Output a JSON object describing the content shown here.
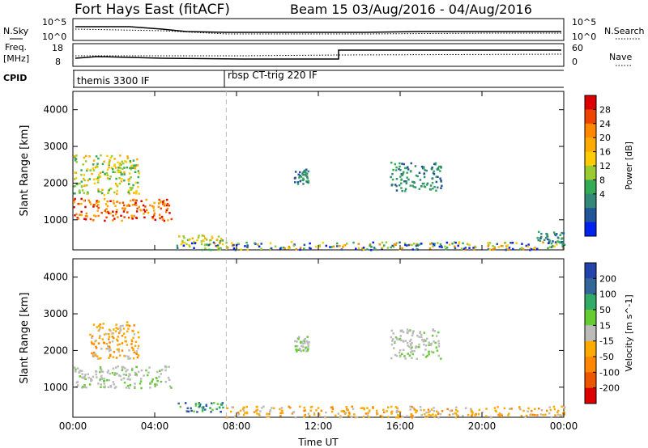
{
  "header": {
    "station": "Fort Hays East (fitACF)",
    "beam_date": "Beam 15  03/Aug/2016 - 04/Aug/2016"
  },
  "noise_panel": {
    "left_label": "N.Sky",
    "left_ticks": [
      "10^5",
      "10^0"
    ],
    "right_label": "N.Search",
    "right_ticks": [
      "10^5",
      "10^0"
    ]
  },
  "freq_panel": {
    "left_label_1": "Freq.",
    "left_label_2": "[MHz]",
    "left_ticks": [
      "18",
      "8"
    ],
    "right_label": "Nave",
    "right_ticks": [
      "60",
      "0"
    ]
  },
  "cpid_panel": {
    "label": "CPID",
    "programs": [
      {
        "name": "themis 3300 IF",
        "start_hour": 0
      },
      {
        "name": "rbsp CT-trig 220 IF",
        "start_hour": 7.5
      }
    ]
  },
  "chart_data": [
    {
      "type": "heatmap",
      "title": "",
      "xlabel": "",
      "ylabel": "Slant Range [km]",
      "xlim": [
        0,
        24
      ],
      "ylim": [
        180,
        4500
      ],
      "x_ticks": [
        0,
        4,
        8,
        12,
        16,
        20,
        24
      ],
      "y_ticks": [
        1000,
        2000,
        3000,
        4000
      ],
      "colorbar": {
        "label": "Power [dB]",
        "ticks": [
          "28",
          "24",
          "20",
          "16",
          "12",
          "8",
          "4"
        ],
        "colors": [
          "#dd0000",
          "#ee4400",
          "#ff8800",
          "#ffaa00",
          "#ffcc00",
          "#99cc33",
          "#33aa55",
          "#338877",
          "#225599",
          "#0022ee"
        ]
      },
      "regions": [
        {
          "hours": [
            0,
            4.8
          ],
          "range_km": [
            1000,
            1600
          ],
          "level": "high"
        },
        {
          "hours": [
            0,
            3.2
          ],
          "range_km": [
            1700,
            2800
          ],
          "level": "medium"
        },
        {
          "hours": [
            5.0,
            7.5
          ],
          "range_km": [
            350,
            600
          ],
          "level": "medium"
        },
        {
          "hours": [
            10.8,
            11.5
          ],
          "range_km": [
            2000,
            2400
          ],
          "level": "low"
        },
        {
          "hours": [
            15.5,
            18.0
          ],
          "range_km": [
            1800,
            2600
          ],
          "level": "low"
        },
        {
          "hours": [
            5.0,
            24
          ],
          "range_km": [
            200,
            420
          ],
          "level": "mixed"
        },
        {
          "hours": [
            22.6,
            24
          ],
          "range_km": [
            300,
            700
          ],
          "level": "low"
        }
      ]
    },
    {
      "type": "heatmap",
      "title": "",
      "xlabel": "Time UT",
      "ylabel": "Slant Range [km]",
      "xlim": [
        0,
        24
      ],
      "ylim": [
        180,
        4500
      ],
      "x_ticks": [
        0,
        4,
        8,
        12,
        16,
        20,
        24
      ],
      "x_tick_labels": [
        "00:00",
        "04:00",
        "08:00",
        "12:00",
        "16:00",
        "20:00",
        "00:00"
      ],
      "y_ticks": [
        1000,
        2000,
        3000,
        4000
      ],
      "colorbar": {
        "label": "Velocity [m s^-1]",
        "ticks": [
          "200",
          "100",
          "50",
          "15",
          "-15",
          "-50",
          "-100",
          "-200"
        ],
        "colors": [
          "#2244aa",
          "#336699",
          "#33aa66",
          "#66cc33",
          "#bbbbbb",
          "#ffaa00",
          "#ff8800",
          "#ee5500",
          "#dd0000"
        ]
      },
      "regions": [
        {
          "hours": [
            0,
            4.8
          ],
          "range_km": [
            1000,
            1600
          ],
          "level": "ground-scatter"
        },
        {
          "hours": [
            0.8,
            3.2
          ],
          "range_km": [
            1800,
            2800
          ],
          "level": "negative"
        },
        {
          "hours": [
            5.0,
            7.5
          ],
          "range_km": [
            350,
            600
          ],
          "level": "positive"
        },
        {
          "hours": [
            10.8,
            11.5
          ],
          "range_km": [
            2000,
            2400
          ],
          "level": "ground-scatter"
        },
        {
          "hours": [
            15.5,
            18.0
          ],
          "range_km": [
            1800,
            2600
          ],
          "level": "ground-scatter"
        },
        {
          "hours": [
            7.5,
            24
          ],
          "range_km": [
            200,
            500
          ],
          "level": "negative"
        }
      ]
    }
  ]
}
